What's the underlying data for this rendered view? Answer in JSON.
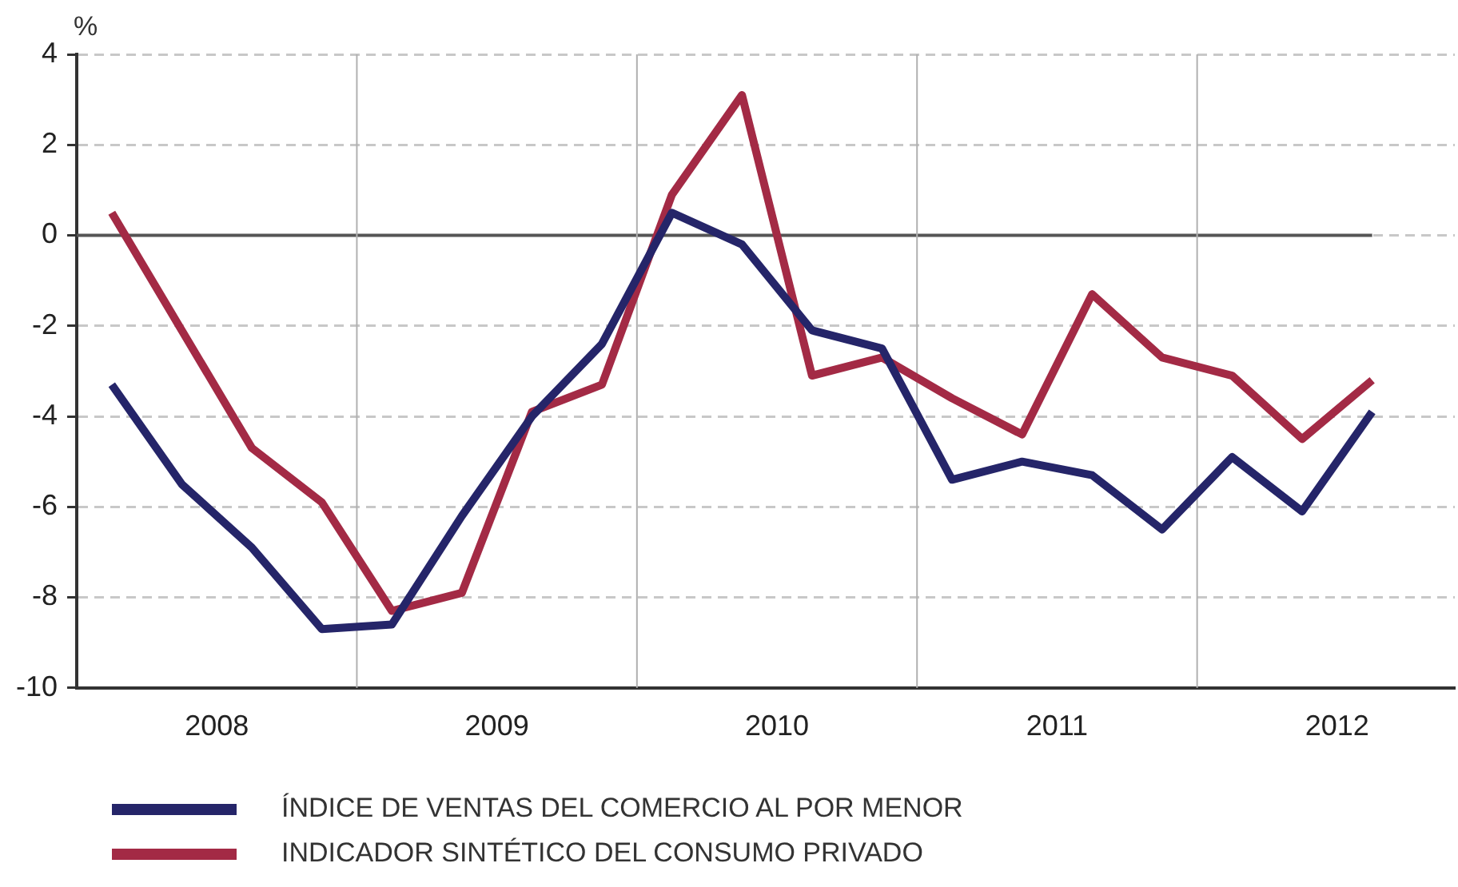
{
  "chart_data": {
    "type": "line",
    "ylabel": "%",
    "x": [
      2008.125,
      2008.375,
      2008.625,
      2008.875,
      2009.125,
      2009.375,
      2009.625,
      2009.875,
      2010.125,
      2010.375,
      2010.625,
      2010.875,
      2011.125,
      2011.375,
      2011.625,
      2011.875,
      2012.125,
      2012.375,
      2012.625
    ],
    "series": [
      {
        "name": "ÍNDICE DE VENTAS DEL COMERCIO AL POR MENOR",
        "color": "#252569",
        "values": [
          -3.3,
          -5.5,
          -6.9,
          -8.7,
          -8.6,
          -6.2,
          -4.0,
          -2.4,
          0.5,
          -0.2,
          -2.1,
          -2.5,
          -5.4,
          -5.0,
          -5.3,
          -6.5,
          -4.9,
          -6.1,
          -3.9
        ]
      },
      {
        "name": "INDICADOR SINTÉTICO DEL CONSUMO PRIVADO",
        "color": "#a32a45",
        "values": [
          0.5,
          -2.1,
          -4.7,
          -5.9,
          -8.3,
          -7.9,
          -3.9,
          -3.3,
          0.9,
          3.1,
          -3.1,
          -2.7,
          -3.6,
          -4.4,
          -1.3,
          -2.7,
          -3.1,
          -4.5,
          -3.2
        ]
      }
    ],
    "xlim": [
      2008,
      2012.92
    ],
    "xticks": [
      {
        "value": 2008.5,
        "label": "2008"
      },
      {
        "value": 2009.5,
        "label": "2009"
      },
      {
        "value": 2010.5,
        "label": "2010"
      },
      {
        "value": 2011.5,
        "label": "2011"
      },
      {
        "value": 2012.5,
        "label": "2012"
      }
    ],
    "ylim": [
      -10,
      4
    ],
    "yticks": [
      -10,
      -8,
      -6,
      -4,
      -2,
      0,
      2,
      4
    ],
    "grid": "y",
    "legend": "bottom left",
    "marker": "none",
    "line_style": "solid",
    "ref_lines": [
      {
        "axis": "y",
        "value": 0,
        "color": "#555555"
      },
      {
        "axis": "x",
        "value": 2009,
        "color": "#b0b0b0"
      },
      {
        "axis": "x",
        "value": 2010,
        "color": "#b0b0b0"
      },
      {
        "axis": "x",
        "value": 2011,
        "color": "#b0b0b0"
      },
      {
        "axis": "x",
        "value": 2012,
        "color": "#b0b0b0"
      }
    ]
  }
}
